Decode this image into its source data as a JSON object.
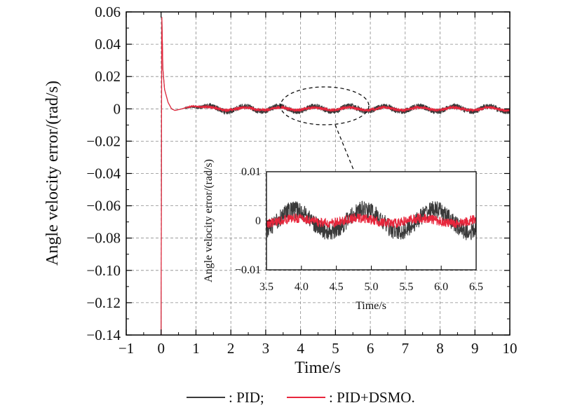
{
  "chart_data": [
    {
      "type": "line",
      "xlabel": "Time/s",
      "ylabel": "Angle velocity error/(rad/s)",
      "xlim": [
        -1,
        10
      ],
      "ylim": [
        -0.14,
        0.06
      ],
      "xticks": [
        "−1",
        "0",
        "1",
        "2",
        "3",
        "4",
        "5",
        "6",
        "7",
        "8",
        "9",
        "10"
      ],
      "yticks": [
        "0.06",
        "0.04",
        "0.02",
        "0",
        "−0.02",
        "−0.04",
        "−0.06",
        "−0.08",
        "−0.10",
        "−0.12",
        "−0.14"
      ],
      "grid": true,
      "series": [
        {
          "name": "PID",
          "color": "#3a3a3a",
          "x": [
            0,
            0.02,
            0.05,
            0.1,
            0.2,
            0.3,
            0.4,
            0.6,
            0.9,
            1.5,
            2.0,
            3.0,
            4.0,
            5.0,
            6.0,
            7.0,
            8.0,
            9.0,
            10.0
          ],
          "y": [
            -0.14,
            0.06,
            0.025,
            0.012,
            0.004,
            0.0,
            -0.001,
            0.0,
            0.002,
            0.0,
            0.0,
            0.0,
            0.0,
            0.0,
            0.0,
            0.0,
            0.0,
            0.0,
            0.0
          ],
          "oscillation_amplitude": 0.003,
          "oscillation_period": 1.0
        },
        {
          "name": "PID+DSMO",
          "color": "#e8263c",
          "x": [
            0,
            0.02,
            0.05,
            0.1,
            0.2,
            0.3,
            0.4,
            0.6,
            0.9,
            1.5,
            2.0,
            3.0,
            4.0,
            5.0,
            6.0,
            7.0,
            8.0,
            9.0,
            10.0
          ],
          "y": [
            -0.14,
            0.06,
            0.025,
            0.012,
            0.004,
            0.0,
            -0.001,
            0.0,
            0.002,
            0.0,
            0.0,
            0.0,
            0.0,
            0.0,
            0.0,
            0.0,
            0.0,
            0.0,
            0.0
          ],
          "oscillation_amplitude": 0.0015,
          "oscillation_period": 1.0
        }
      ]
    },
    {
      "type": "line",
      "role": "inset",
      "xlabel": "Time/s",
      "ylabel": "Angle velocity error/(rad/s)",
      "xlim": [
        3.5,
        6.5
      ],
      "ylim": [
        -0.01,
        0.01
      ],
      "xticks": [
        "3.5",
        "4.0",
        "4.5",
        "5.0",
        "5.5",
        "6.0",
        "6.5"
      ],
      "yticks": [
        "0.01",
        "0",
        "−0.01"
      ],
      "grid": false,
      "series": [
        {
          "name": "PID",
          "color": "#3a3a3a",
          "mean": 0.0,
          "amplitude": 0.003,
          "period": 1.0,
          "peaks_at": [
            3.9,
            4.9,
            5.9
          ],
          "troughs_at": [
            4.4,
            5.4,
            6.4
          ]
        },
        {
          "name": "PID+DSMO",
          "color": "#e8263c",
          "mean": 0.0,
          "amplitude": 0.0015,
          "period": 1.0
        }
      ]
    }
  ],
  "legend": {
    "items": [
      {
        "label": ": PID;",
        "color": "#3a3a3a"
      },
      {
        "label": ": PID+DSMO.",
        "color": "#e8263c"
      }
    ]
  }
}
